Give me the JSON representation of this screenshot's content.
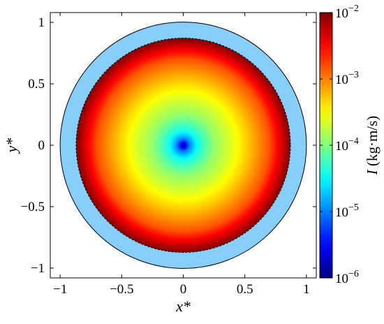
{
  "chart_data": {
    "type": "heatmap",
    "xlabel": "x*",
    "ylabel": "y*",
    "xlim": [
      -1.08,
      1.08
    ],
    "ylim": [
      -1.08,
      1.08
    ],
    "xticks": [
      -1,
      -0.5,
      0,
      0.5,
      1
    ],
    "xtick_labels": [
      "−1",
      "−0.5",
      "0",
      "0.5",
      "1"
    ],
    "yticks": [
      -1,
      -0.5,
      0,
      0.5,
      1
    ],
    "ytick_labels": [
      "−1",
      "−0.5",
      "0",
      "0.5",
      "1"
    ],
    "outer_radius": 1,
    "inner_radius": 0.87,
    "outside_fill_color": "#87cefa",
    "inner_boundary_style": "dashed",
    "field": {
      "description_of_values": "I increases radially from center",
      "radial_profile": [
        {
          "r": 0.0,
          "I": 1e-06
        },
        {
          "r": 0.02,
          "I": 3e-06
        },
        {
          "r": 0.05,
          "I": 1e-05
        },
        {
          "r": 0.12,
          "I": 4e-05
        },
        {
          "r": 0.25,
          "I": 0.00012
        },
        {
          "r": 0.4,
          "I": 0.00025
        },
        {
          "r": 0.55,
          "I": 0.0006
        },
        {
          "r": 0.7,
          "I": 0.0015
        },
        {
          "r": 0.87,
          "I": 0.01
        }
      ]
    },
    "colorbar": {
      "scale": "log",
      "min": 1e-06,
      "max": 0.01,
      "colormap": "jet",
      "tick_values": [
        1e-06,
        1e-05,
        0.0001,
        0.001,
        0.01
      ],
      "tick_labels": [
        {
          "base": "10",
          "exp": "−6"
        },
        {
          "base": "10",
          "exp": "−5"
        },
        {
          "base": "10",
          "exp": "−4"
        },
        {
          "base": "10",
          "exp": "−3"
        },
        {
          "base": "10",
          "exp": "−2"
        }
      ],
      "label_symbol": "I",
      "label_unit": " (kg·m/s)"
    },
    "grid": false
  }
}
